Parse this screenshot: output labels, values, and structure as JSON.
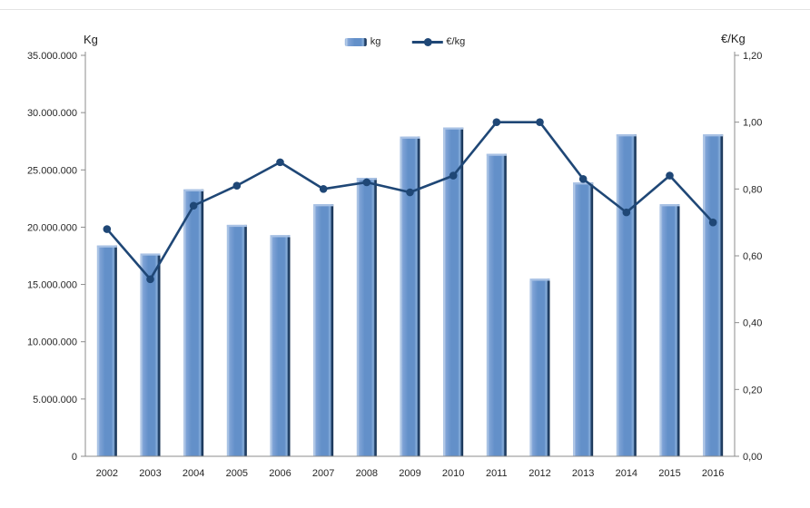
{
  "chart_data": {
    "type": "combo",
    "title": "",
    "categories": [
      "2002",
      "2003",
      "2004",
      "2005",
      "2006",
      "2007",
      "2008",
      "2009",
      "2010",
      "2011",
      "2012",
      "2013",
      "2014",
      "2015",
      "2016"
    ],
    "series": [
      {
        "name": "kg",
        "type": "bar",
        "axis": "left",
        "values": [
          18400000,
          17700000,
          23300000,
          20200000,
          19300000,
          22000000,
          24300000,
          27900000,
          28700000,
          26400000,
          15500000,
          23900000,
          28100000,
          22000000,
          28100000
        ]
      },
      {
        "name": "€/kg",
        "type": "line",
        "axis": "right",
        "values": [
          0.68,
          0.53,
          0.75,
          0.81,
          0.88,
          0.8,
          0.82,
          0.79,
          0.84,
          1.0,
          1.0,
          0.83,
          0.73,
          0.84,
          0.7
        ]
      }
    ],
    "y1": {
      "title": "Kg",
      "min": 0,
      "max": 35000000,
      "step": 5000000,
      "tick_labels": [
        "35.000.000",
        "30.000.000",
        "25.000.000",
        "20.000.000",
        "15.000.000",
        "10.000.000",
        "5.000.000",
        "0"
      ]
    },
    "y2": {
      "title": "€/Kg",
      "min": 0,
      "max": 1.2,
      "step": 0.2,
      "tick_labels": [
        "1,20",
        "1,00",
        "0,80",
        "0,60",
        "0,40",
        "0,20",
        "0,00"
      ]
    },
    "legend_position": "top-center",
    "grid": false,
    "colors": {
      "bar_body": "#6390C9",
      "bar_highlight": "#B9CEE9",
      "bar_shadow": "#16304F",
      "line": "#1F4776",
      "axis": "#8C8C8C",
      "text": "#262626"
    }
  }
}
